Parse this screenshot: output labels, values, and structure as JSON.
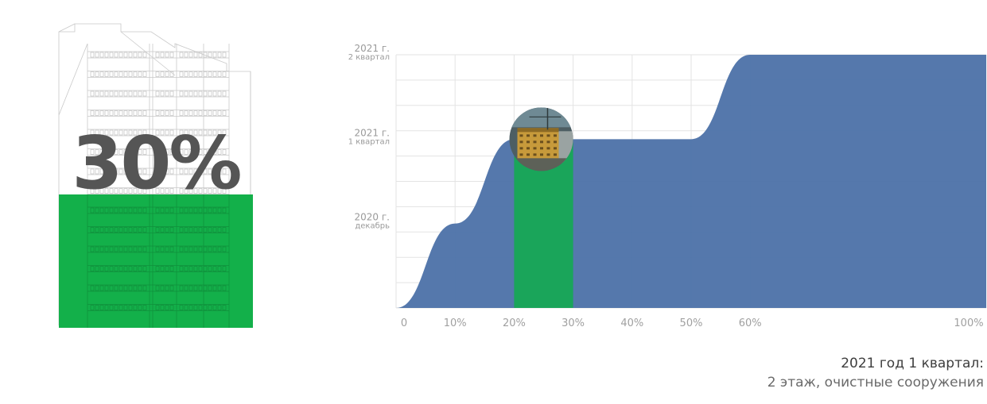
{
  "progress": {
    "value": 0.3,
    "label": "30%",
    "fill_color": "#13b04a"
  },
  "chart_data": {
    "type": "area",
    "x": [
      0,
      10,
      20,
      30,
      40,
      50,
      60,
      100
    ],
    "y": [
      0,
      1,
      2,
      2,
      2,
      2,
      3,
      3
    ],
    "xlim": [
      0,
      100
    ],
    "ylim": [
      0,
      3
    ],
    "x_tick_labels": [
      "0",
      "10%",
      "20%",
      "30%",
      "40%",
      "50%",
      "60%",
      "100%"
    ],
    "y_tick_labels": [
      {
        "year": "2020 г.",
        "period": "декабрь"
      },
      {
        "year": "2021 г.",
        "period": "1 квартал"
      },
      {
        "year": "2021 г.",
        "period": "2 квартал"
      }
    ],
    "highlight": {
      "from": 20,
      "to": 30,
      "color": "#1aa55a"
    },
    "area_color": "#5074a9",
    "grid": true
  },
  "caption": {
    "title": "2021 год 1 квартал:",
    "description": "2 этаж, очистные сооружения"
  }
}
